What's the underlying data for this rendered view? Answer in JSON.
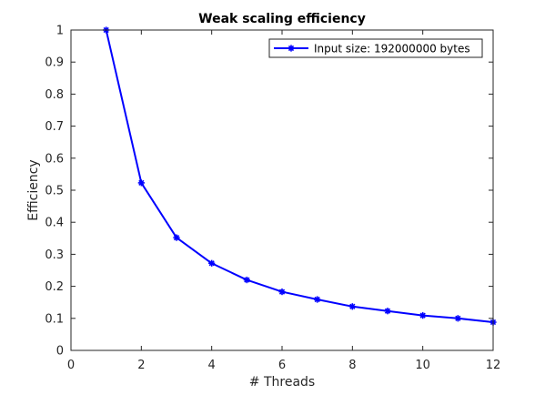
{
  "chart_data": {
    "type": "line",
    "title": "Weak scaling efficiency",
    "xlabel": "# Threads",
    "ylabel": "Efficiency",
    "xlim": [
      0,
      12
    ],
    "ylim": [
      0,
      1
    ],
    "xticks": [
      0,
      2,
      4,
      6,
      8,
      10,
      12
    ],
    "yticks": [
      0,
      0.1,
      0.2,
      0.3,
      0.4,
      0.5,
      0.6,
      0.7,
      0.8,
      0.9,
      1
    ],
    "xtick_labels": [
      "0",
      "2",
      "4",
      "6",
      "8",
      "10",
      "12"
    ],
    "ytick_labels": [
      "0",
      "0.1",
      "0.2",
      "0.3",
      "0.4",
      "0.5",
      "0.6",
      "0.7",
      "0.8",
      "0.9",
      "1"
    ],
    "grid": false,
    "legend_position": "top-right",
    "series": [
      {
        "name": "Input size: 192000000 bytes",
        "color": "#0000ff",
        "marker": "asterisk",
        "x": [
          1,
          2,
          3,
          4,
          5,
          6,
          7,
          8,
          9,
          10,
          11,
          12
        ],
        "y": [
          1.0,
          0.523,
          0.352,
          0.272,
          0.22,
          0.183,
          0.159,
          0.137,
          0.123,
          0.109,
          0.1,
          0.088
        ]
      }
    ]
  }
}
